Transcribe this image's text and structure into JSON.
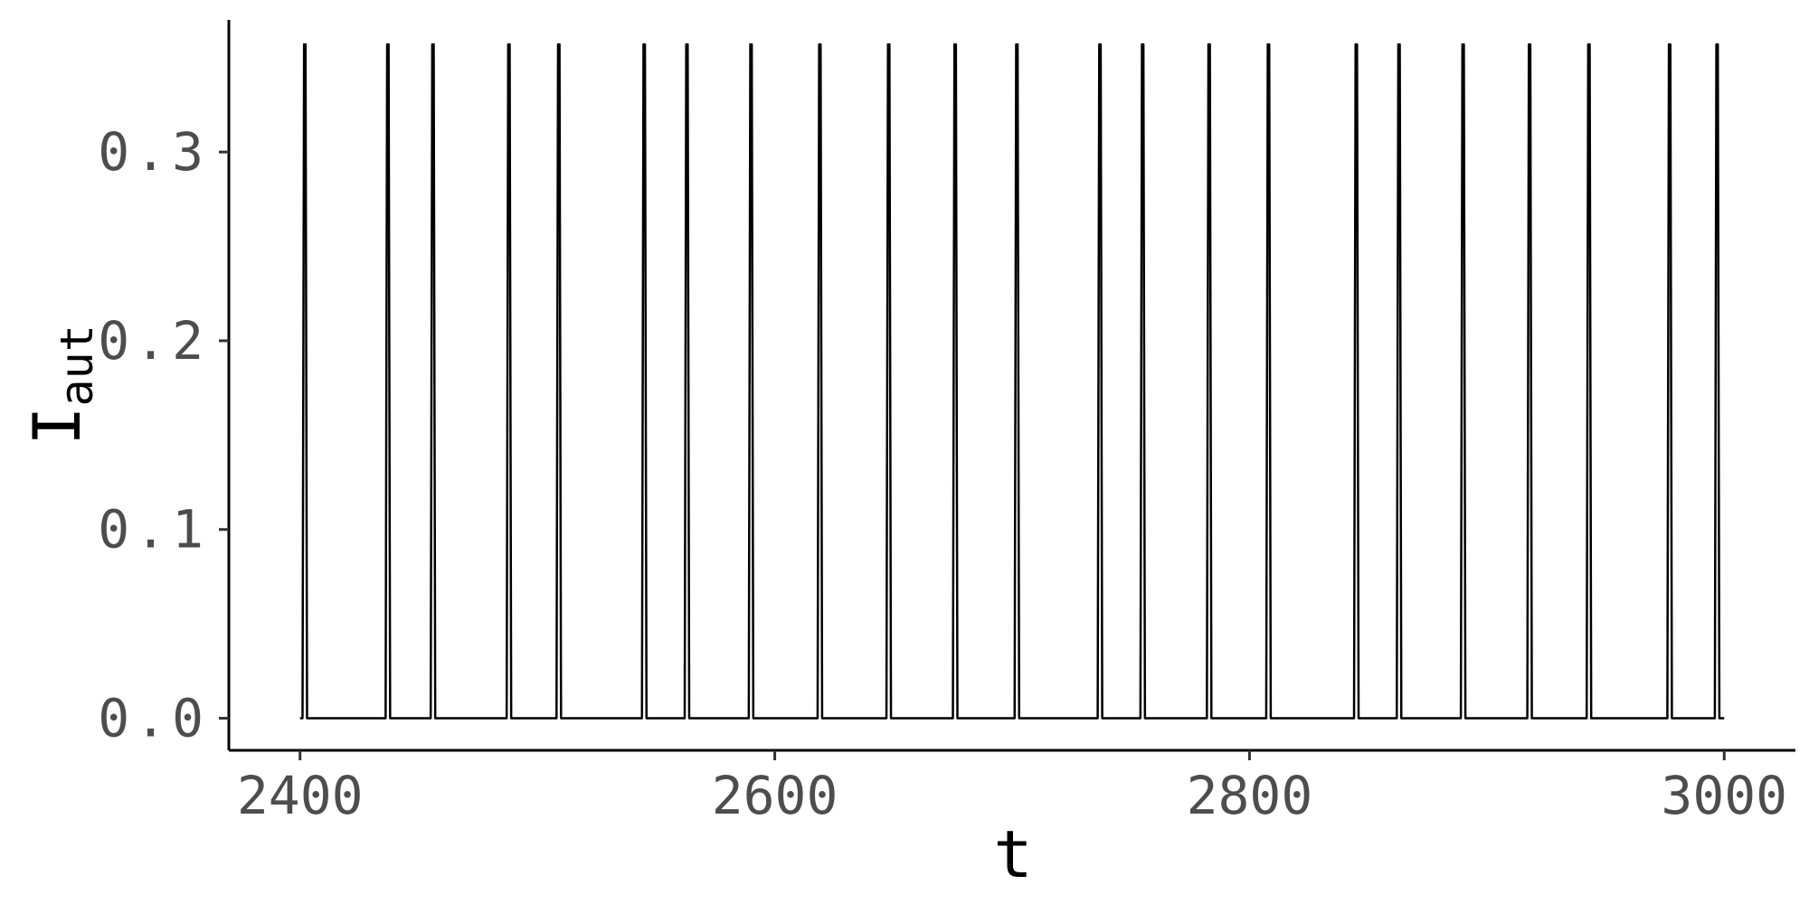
{
  "chart_data": {
    "type": "line",
    "title": "",
    "xlabel": "t",
    "ylabel": {
      "main": "I",
      "subscript": "aut"
    },
    "xlim": [
      2370,
      3030
    ],
    "ylim": [
      -0.017,
      0.37
    ],
    "x_ticks": [
      2400,
      2600,
      2800,
      3000
    ],
    "x_tick_labels": [
      "2400",
      "2600",
      "2800",
      "3000"
    ],
    "y_ticks": [
      0.0,
      0.1,
      0.2,
      0.3
    ],
    "y_tick_labels": [
      "0.0",
      "0.1",
      "0.2",
      "0.3"
    ],
    "grid": false,
    "series": [
      {
        "line_color": "#000000",
        "t_start": 2400,
        "t_end": 3000,
        "baseline": 0.0,
        "peak": 0.357,
        "spike_times": [
          2402,
          2437,
          2456,
          2488,
          2509,
          2545,
          2563,
          2590,
          2619,
          2648,
          2676,
          2702,
          2737,
          2755,
          2783,
          2808,
          2845,
          2863,
          2890,
          2918,
          2943,
          2977,
          2997
        ]
      }
    ]
  }
}
